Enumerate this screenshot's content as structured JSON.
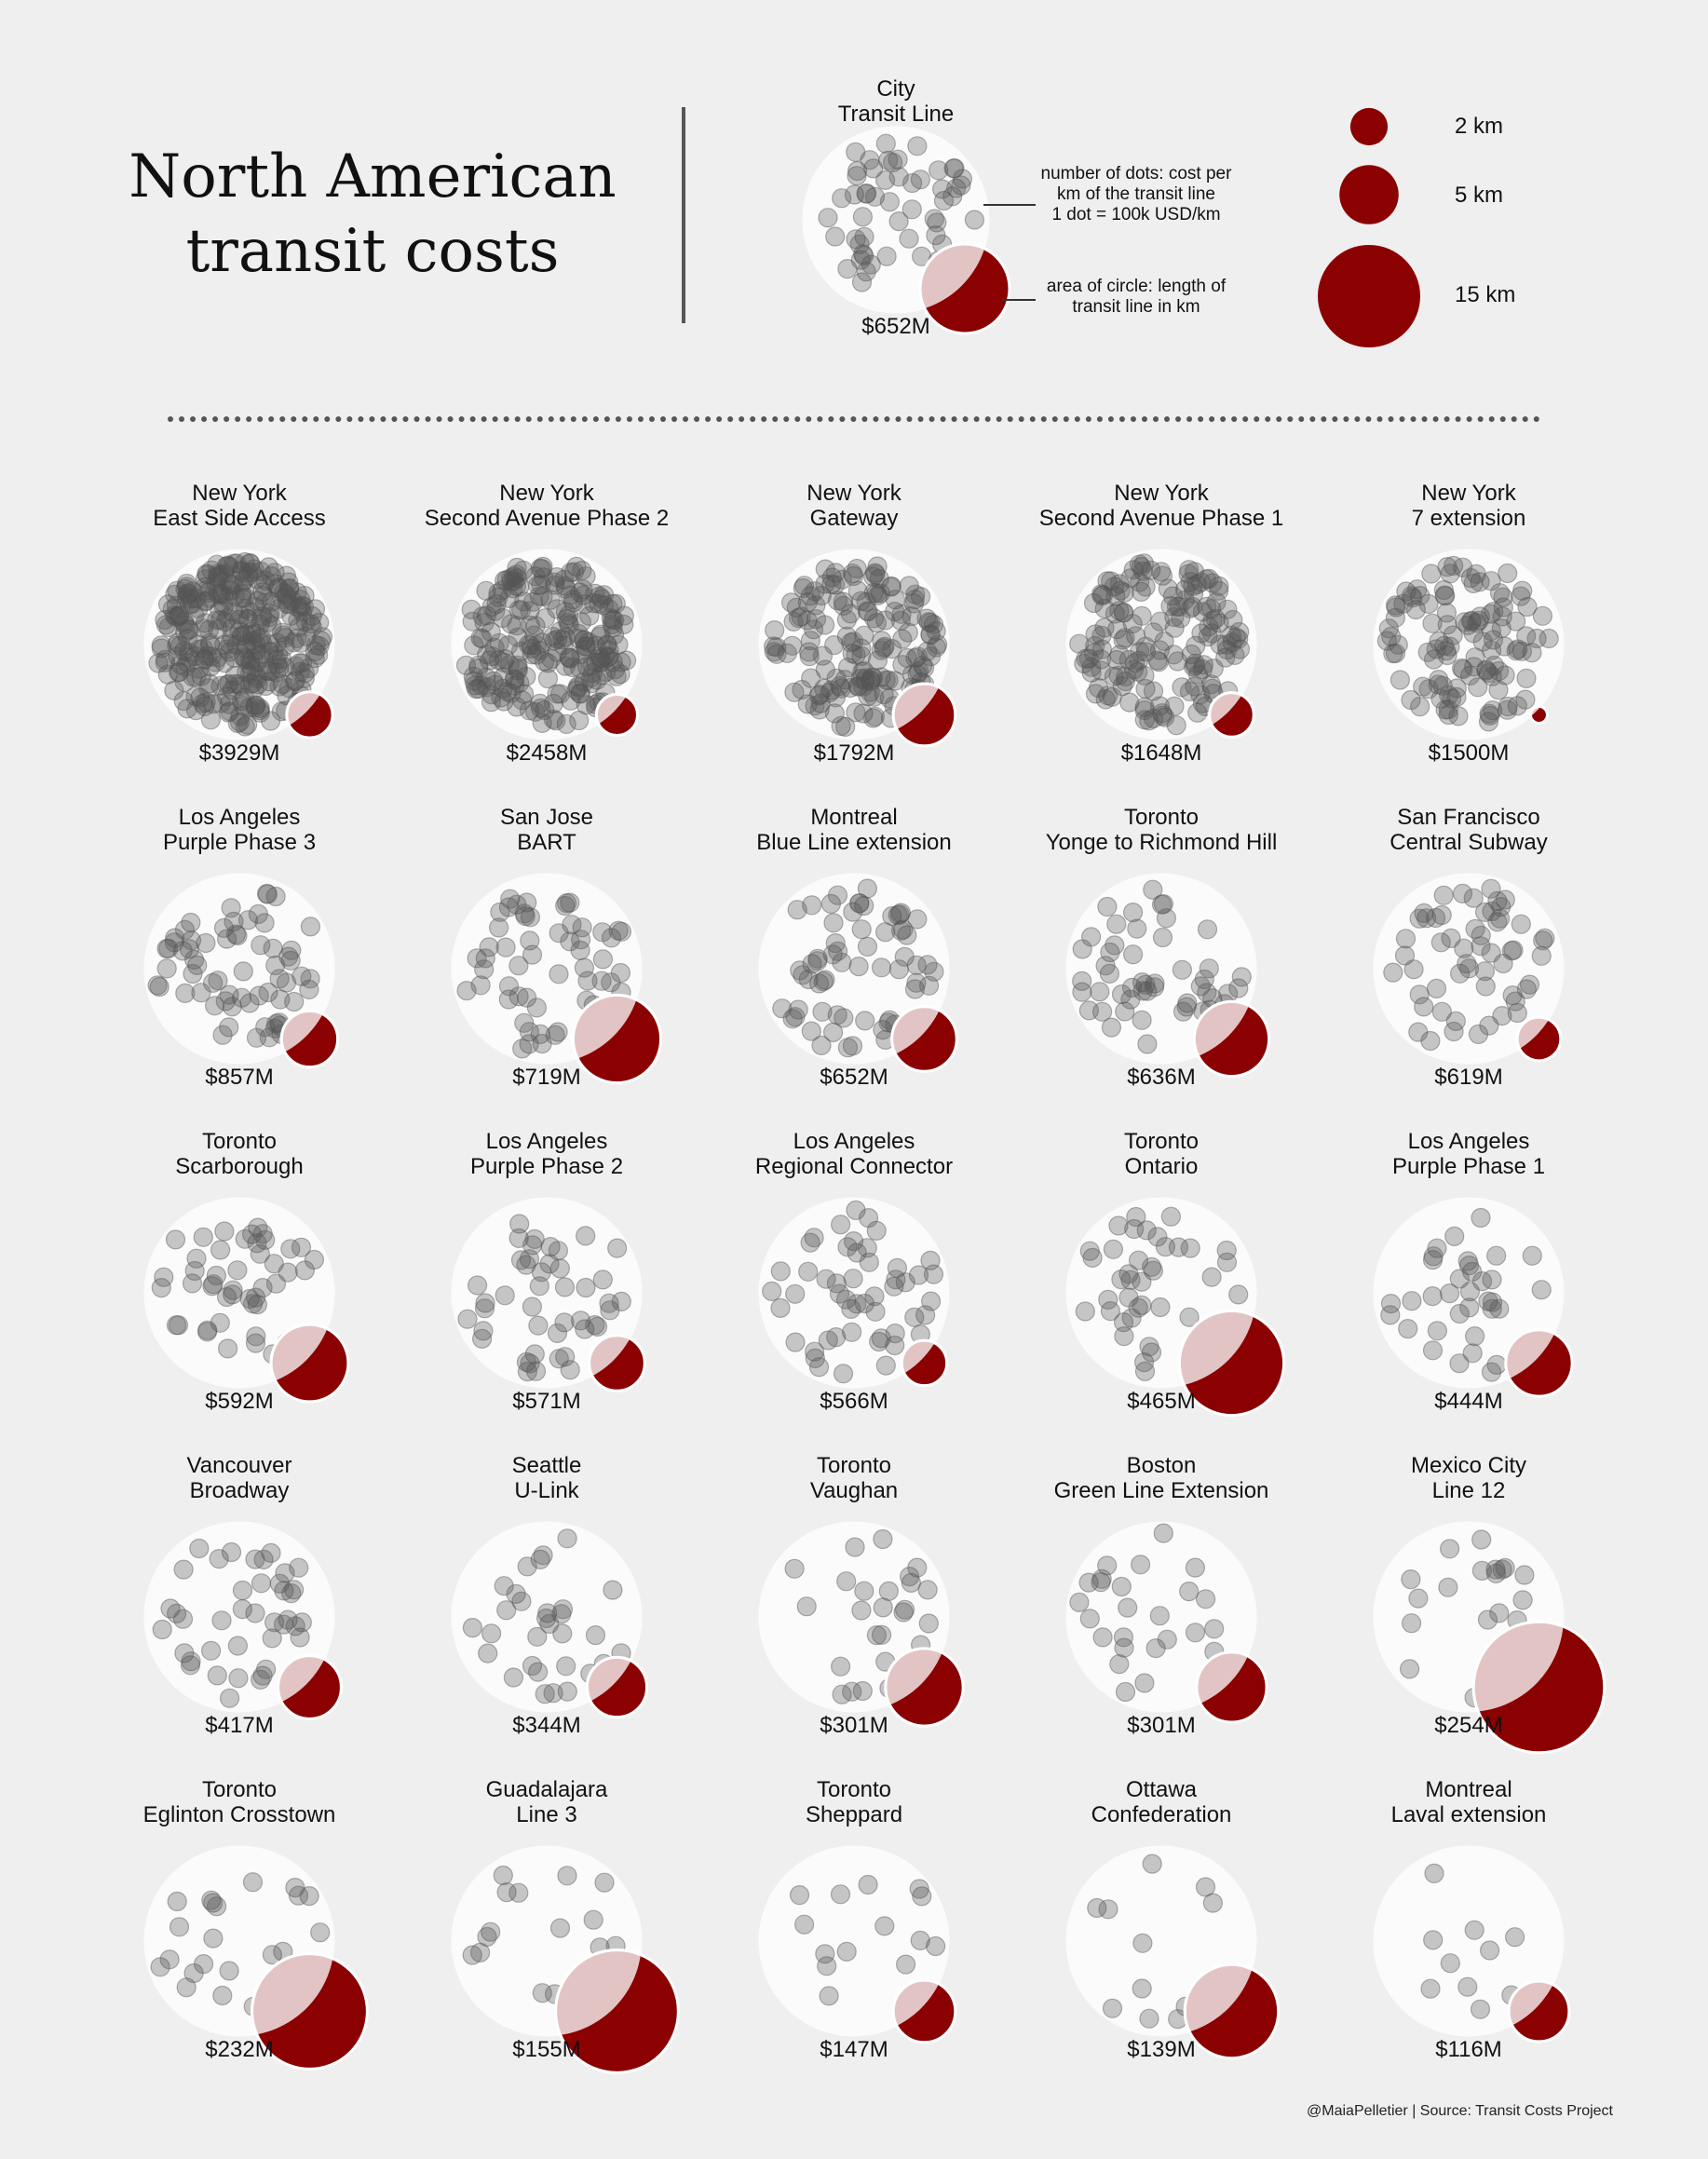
{
  "title": {
    "line1": "North American",
    "line2": "transit costs"
  },
  "legend_example": {
    "city": "City",
    "line": "Transit Line",
    "cost": "$652M",
    "dots_note": [
      "number of dots: cost per",
      "km of the transit line",
      "1 dot = 100k USD/km"
    ],
    "area_note": [
      "area of circle: length of",
      "transit line in km"
    ]
  },
  "size_legend": [
    {
      "label": "2 km",
      "km": 2
    },
    {
      "label": "5 km",
      "km": 5
    },
    {
      "label": "15 km",
      "km": 15
    }
  ],
  "credit": "@MaiaPelletier | Source: Transit Costs Project",
  "colors": {
    "background": "#efefef",
    "length_circle": "#8b0000",
    "overlap": "#e3c4c4",
    "dot": "#555555",
    "text": "#111111"
  },
  "chart_data": {
    "type": "scatter",
    "encoding": "packed dots in a white circle (count = cost per km, 1 dot = 100k USD/km) with a dark-red circle whose area = line length in km",
    "lines": [
      {
        "city": "New York",
        "line": "East Side Access",
        "cost": "$3929M",
        "dots": 320,
        "km": 3
      },
      {
        "city": "New York",
        "line": "Second Avenue Phase 2",
        "cost": "$2458M",
        "dots": 230,
        "km": 2.4
      },
      {
        "city": "New York",
        "line": "Gateway",
        "cost": "$1792M",
        "dots": 165,
        "km": 5.5
      },
      {
        "city": "New York",
        "line": "Second Avenue Phase 1",
        "cost": "$1648M",
        "dots": 160,
        "km": 2.8
      },
      {
        "city": "New York",
        "line": "7 extension",
        "cost": "$1500M",
        "dots": 115,
        "km": 0.4
      },
      {
        "city": "Los Angeles",
        "line": "Purple Phase 3",
        "cost": "$857M",
        "dots": 65,
        "km": 4.5
      },
      {
        "city": "San Jose",
        "line": "BART",
        "cost": "$719M",
        "dots": 60,
        "km": 11
      },
      {
        "city": "Montreal",
        "line": "Blue Line extension",
        "cost": "$652M",
        "dots": 62,
        "km": 6
      },
      {
        "city": "Toronto",
        "line": "Yonge to Richmond Hill",
        "cost": "$636M",
        "dots": 50,
        "km": 8
      },
      {
        "city": "San Francisco",
        "line": "Central Subway",
        "cost": "$619M",
        "dots": 55,
        "km": 2.7
      },
      {
        "city": "Toronto",
        "line": "Scarborough",
        "cost": "$592M",
        "dots": 45,
        "km": 8.5
      },
      {
        "city": "Los Angeles",
        "line": "Purple Phase 2",
        "cost": "$571M",
        "dots": 45,
        "km": 4.4
      },
      {
        "city": "Los Angeles",
        "line": "Regional Connector",
        "cost": "$566M",
        "dots": 50,
        "km": 2.9
      },
      {
        "city": "Toronto",
        "line": "Ontario",
        "cost": "$465M",
        "dots": 40,
        "km": 15.6
      },
      {
        "city": "Los Angeles",
        "line": "Purple Phase 1",
        "cost": "$444M",
        "dots": 35,
        "km": 6.3
      },
      {
        "city": "Vancouver",
        "line": "Broadway",
        "cost": "$417M",
        "dots": 40,
        "km": 5.7
      },
      {
        "city": "Seattle",
        "line": "U-Link",
        "cost": "$344M",
        "dots": 30,
        "km": 5.1
      },
      {
        "city": "Toronto",
        "line": "Vaughan",
        "cost": "$301M",
        "dots": 25,
        "km": 8.6
      },
      {
        "city": "Boston",
        "line": "Green Line Extension",
        "cost": "$301M",
        "dots": 25,
        "km": 7
      },
      {
        "city": "Mexico City",
        "line": "Line 12",
        "cost": "$254M",
        "dots": 20,
        "km": 24.5
      },
      {
        "city": "Toronto",
        "line": "Eglinton Crosstown",
        "cost": "$232M",
        "dots": 22,
        "km": 19
      },
      {
        "city": "Guadalajara",
        "line": "Line 3",
        "cost": "$155M",
        "dots": 15,
        "km": 21.5
      },
      {
        "city": "Toronto",
        "line": "Sheppard",
        "cost": "$147M",
        "dots": 14,
        "km": 5.5
      },
      {
        "city": "Ottawa",
        "line": "Confederation",
        "cost": "$139M",
        "dots": 13,
        "km": 12.5
      },
      {
        "city": "Montreal",
        "line": "Laval extension",
        "cost": "$116M",
        "dots": 10,
        "km": 5.2
      }
    ]
  }
}
